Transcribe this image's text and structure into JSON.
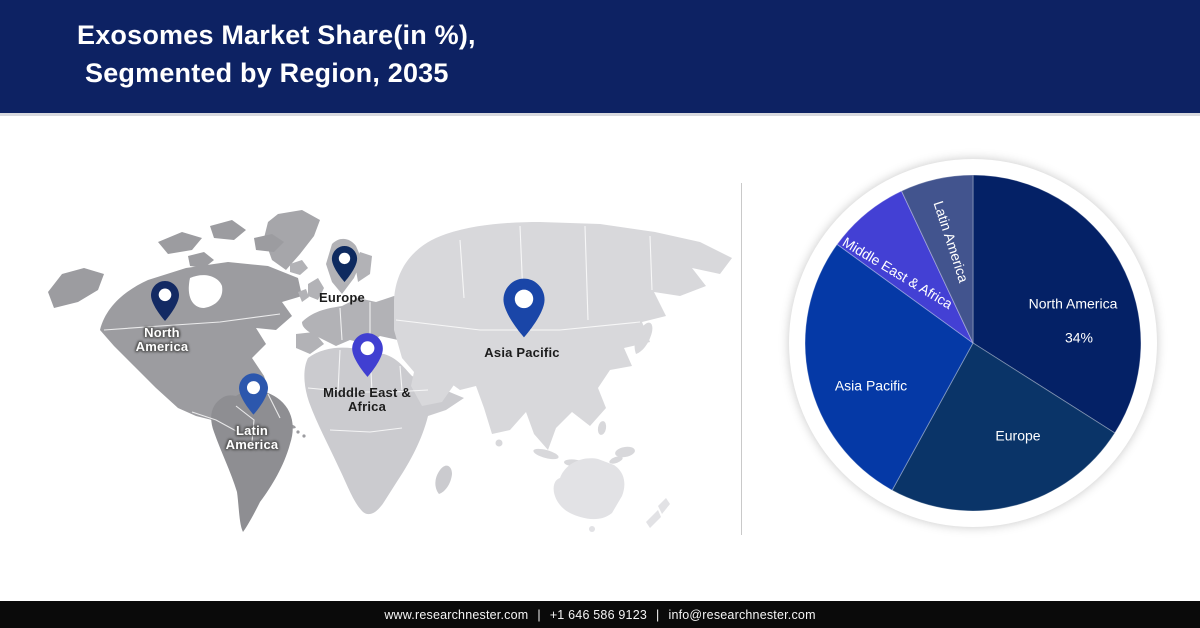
{
  "header": {
    "title_line1": "Exosomes Market Share(in %),",
    "title_line2": "Segmented by Region, 2035",
    "bg_color": "#0d2263",
    "text_color": "#ffffff"
  },
  "map": {
    "colors": {
      "north_america": "#9c9ca0",
      "greenland": "#a6a6aa",
      "south_america": "#8e8e92",
      "europe": "#b2b2b6",
      "africa": "#cbcbcf",
      "asia": "#d8d8db",
      "australia": "#e2e2e5",
      "border_line": "#ffffff"
    },
    "pins": [
      {
        "id": "north-america",
        "label": "North America",
        "lines": [
          "North",
          "America"
        ],
        "text_style": "light",
        "pin_color": "#132a63"
      },
      {
        "id": "europe",
        "label": "Europe",
        "lines": [
          "Europe"
        ],
        "text_style": "dark",
        "pin_color": "#0e2a5f"
      },
      {
        "id": "asia-pacific",
        "label": "Asia Pacific",
        "lines": [
          "Asia Pacific"
        ],
        "text_style": "dark",
        "pin_color": "#1a46a8"
      },
      {
        "id": "middle-east-africa",
        "label": "Middle East & Africa",
        "lines": [
          "Middle East &",
          "Africa"
        ],
        "text_style": "dark",
        "pin_color": "#403fd1"
      },
      {
        "id": "latin-america",
        "label": "Latin America",
        "lines": [
          "Latin",
          "America"
        ],
        "text_style": "light",
        "pin_color": "#2c57ad"
      }
    ]
  },
  "chart_data": {
    "type": "pie",
    "title": "Exosomes Market Share(in %), Segmented by Region, 2035",
    "start_angle_deg": 0,
    "direction": "clockwise",
    "label_color": "#ffffff",
    "ring_color": "#ffffff",
    "segments": [
      {
        "label": "North America",
        "value": 34,
        "value_label": "34%",
        "color": "#042166"
      },
      {
        "label": "Europe",
        "value": 24,
        "color": "#0a3468"
      },
      {
        "label": "Asia Pacific",
        "value": 27,
        "color": "#0539a6"
      },
      {
        "label": "Middle East & Africa",
        "value": 8,
        "color": "#4340d4"
      },
      {
        "label": "Latin America",
        "value": 7,
        "color": "#42548e"
      }
    ]
  },
  "footer": {
    "website": "www.researchnester.com",
    "phone": "+1 646 586 9123",
    "email": "info@researchnester.com",
    "separator": "|",
    "bg_color": "#0a0a0a",
    "text_color": "#f5f5f5"
  }
}
